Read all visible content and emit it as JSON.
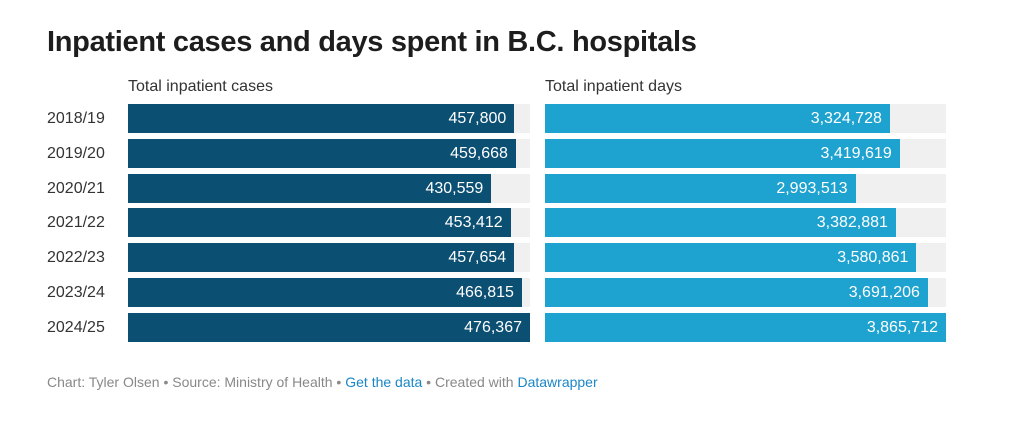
{
  "chart_data": {
    "type": "bar",
    "title": "Inpatient cases and days spent in B.C. hospitals",
    "categories": [
      "2018/19",
      "2019/20",
      "2020/21",
      "2021/22",
      "2022/23",
      "2023/24",
      "2024/25"
    ],
    "series": [
      {
        "name": "Total inpatient cases",
        "values": [
          457800,
          459668,
          430559,
          453412,
          457654,
          466815,
          476367
        ],
        "labels": [
          "457,800",
          "459,668",
          "430,559",
          "453,412",
          "457,654",
          "466,815",
          "476,367"
        ],
        "color": "#0b4f72"
      },
      {
        "name": "Total inpatient days",
        "values": [
          3324728,
          3419619,
          2993513,
          3382881,
          3580861,
          3691206,
          3865712
        ],
        "labels": [
          "3,324,728",
          "3,419,619",
          "2,993,513",
          "3,382,881",
          "3,580,861",
          "3,691,206",
          "3,865,712"
        ],
        "color": "#1ea2cf"
      }
    ],
    "orientation": "horizontal",
    "track_color": "#f0f0f0"
  },
  "footer": {
    "chart_by": "Chart: Tyler Olsen",
    "sep": " • ",
    "source": "Source: Ministry of Health",
    "get_data": "Get the data",
    "created": "Created with",
    "tool": "Datawrapper"
  }
}
